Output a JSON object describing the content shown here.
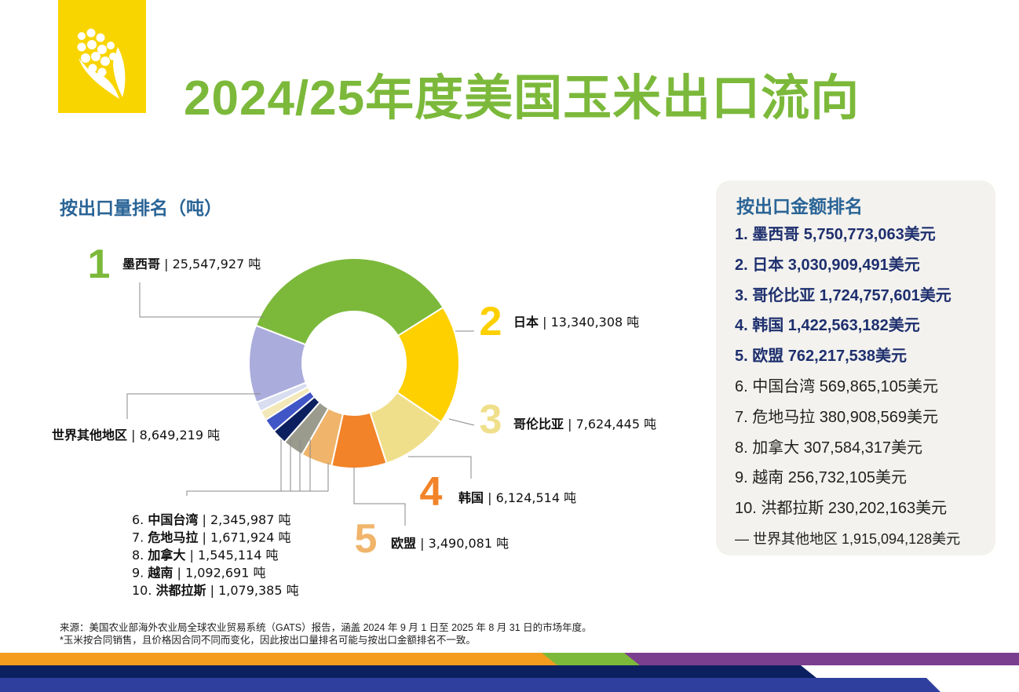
{
  "header": {
    "title": "2024/25年度美国玉米出口流向",
    "logo_icon": "corn-icon"
  },
  "chart_data": {
    "type": "pie",
    "title": "按出口量排名（吨）",
    "unit": "吨",
    "slices": [
      {
        "rank": "1",
        "label": "墨西哥",
        "value_text": "25,547,927",
        "value": 25547927,
        "color": "#7cb93b",
        "labeled": "big"
      },
      {
        "rank": "2",
        "label": "日本",
        "value_text": "13,340,308",
        "value": 13340308,
        "color": "#fed000",
        "labeled": "big"
      },
      {
        "rank": "3",
        "label": "哥伦比亚",
        "value_text": "7,624,445",
        "value": 7624445,
        "color": "#f0df8a",
        "labeled": "big"
      },
      {
        "rank": "4",
        "label": "韩国",
        "value_text": "6,124,514",
        "value": 6124514,
        "color": "#f28328",
        "labeled": "big"
      },
      {
        "rank": "5",
        "label": "欧盟",
        "value_text": "3,490,081",
        "value": 3490081,
        "color": "#f0b46a",
        "labeled": "big"
      },
      {
        "rank": "6.",
        "label": "中国台湾",
        "value_text": "2,345,987",
        "value": 2345987,
        "color": "#9a9b8d",
        "labeled": "small"
      },
      {
        "rank": "7.",
        "label": "危地马拉",
        "value_text": "1,671,924",
        "value": 1671924,
        "color": "#0c2060",
        "labeled": "small"
      },
      {
        "rank": "8.",
        "label": "加拿大",
        "value_text": "1,545,114",
        "value": 1545114,
        "color": "#4055c6",
        "labeled": "small"
      },
      {
        "rank": "9.",
        "label": "越南",
        "value_text": "1,092,691",
        "value": 1092691,
        "color": "#f3e8b8",
        "labeled": "small"
      },
      {
        "rank": "10.",
        "label": "洪都拉斯",
        "value_text": "1,079,385",
        "value": 1079385,
        "color": "#d8ddf0",
        "labeled": "small"
      },
      {
        "rank": "",
        "label": "世界其他地区",
        "value_text": "8,649,219",
        "value": 8649219,
        "color": "#aaacdc",
        "labeled": "rest"
      }
    ]
  },
  "value_ranking": {
    "title": "按出口金额排名",
    "items": [
      {
        "text": "1. 墨西哥 5,750,773,063美元",
        "style": "top"
      },
      {
        "text": "2. 日本 3,030,909,491美元",
        "style": "top"
      },
      {
        "text": "3. 哥伦比亚 1,724,757,601美元",
        "style": "top"
      },
      {
        "text": "4. 韩国 1,422,563,182美元",
        "style": "top"
      },
      {
        "text": "5. 欧盟 762,217,538美元",
        "style": "top"
      },
      {
        "text": "6. 中国台湾 569,865,105美元",
        "style": "normal"
      },
      {
        "text": "7. 危地马拉 380,908,569美元",
        "style": "normal"
      },
      {
        "text": "8. 加拿大 307,584,317美元",
        "style": "normal"
      },
      {
        "text": "9. 越南 256,732,105美元",
        "style": "normal"
      },
      {
        "text": "10. 洪都拉斯 230,202,163美元",
        "style": "normal"
      },
      {
        "text": "— 世界其他地区 1,915,094,128美元",
        "style": "rest"
      }
    ]
  },
  "footnote": {
    "source": "来源：美国农业部海外农业局全球农业贸易系统（GATS）报告，涵盖 2024 年 9 月 1 日至 2025 年 8 月 31 日的市场年度。",
    "note": "*玉米按合同销售，且价格因合同不同而变化，因此按出口量排名可能与按出口金额排名不一致。"
  },
  "colors": {
    "title_green": "#7cb93b",
    "heading_blue": "#2a6496",
    "ranking_navy": "#1e2f6e",
    "logo_yellow": "#f9d500",
    "stripe_orange": "#f39c1e",
    "stripe_green": "#7cb93b",
    "stripe_purple": "#7b3f8f",
    "stripe_navy": "#0c2060",
    "stripe_blue": "#2f3f9e"
  }
}
